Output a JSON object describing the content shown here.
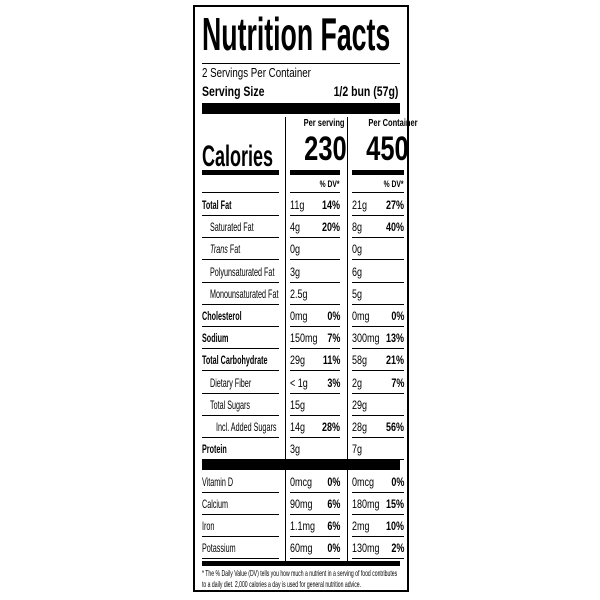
{
  "title": "Nutrition Facts",
  "servings_per_container": "2 Servings Per Container",
  "serving_size": {
    "label": "Serving Size",
    "value": "1/2 bun (57g)"
  },
  "calories": {
    "label": "Calories",
    "per_serving_label": "Per serving",
    "per_serving": "230",
    "per_container_label": "Per Container",
    "per_container": "450"
  },
  "dv_header": "% DV*",
  "nutrients": [
    {
      "label": "Total Fat",
      "bold": true,
      "indent": 0,
      "serving": "11g",
      "serving_dv": "14%",
      "container": "21g",
      "container_dv": "27%"
    },
    {
      "label": "Saturated Fat",
      "bold": false,
      "indent": 1,
      "serving": "4g",
      "serving_dv": "20%",
      "container": "8g",
      "container_dv": "40%"
    },
    {
      "label": "Trans Fat",
      "italic_prefix": "Trans",
      "bold": false,
      "indent": 1,
      "serving": "0g",
      "serving_dv": "",
      "container": "0g",
      "container_dv": ""
    },
    {
      "label": "Polyunsaturated Fat",
      "bold": false,
      "indent": 1,
      "serving": "3g",
      "serving_dv": "",
      "container": "6g",
      "container_dv": ""
    },
    {
      "label": "Monounsaturated Fat",
      "bold": false,
      "indent": 1,
      "serving": "2.5g",
      "serving_dv": "",
      "container": "5g",
      "container_dv": ""
    },
    {
      "label": "Cholesterol",
      "bold": true,
      "indent": 0,
      "serving": "0mg",
      "serving_dv": "0%",
      "container": "0mg",
      "container_dv": "0%"
    },
    {
      "label": "Sodium",
      "bold": true,
      "indent": 0,
      "serving": "150mg",
      "serving_dv": "7%",
      "container": "300mg",
      "container_dv": "13%"
    },
    {
      "label": "Total Carbohydrate",
      "bold": true,
      "indent": 0,
      "serving": "29g",
      "serving_dv": "11%",
      "container": "58g",
      "container_dv": "21%"
    },
    {
      "label": "Dietary Fiber",
      "bold": false,
      "indent": 1,
      "serving": "< 1g",
      "serving_dv": "3%",
      "container": "2g",
      "container_dv": "7%"
    },
    {
      "label": "Total Sugars",
      "bold": false,
      "indent": 1,
      "serving": "15g",
      "serving_dv": "",
      "container": "29g",
      "container_dv": ""
    },
    {
      "label": "Incl. Added Sugars",
      "bold": false,
      "indent": 2,
      "serving": "14g",
      "serving_dv": "28%",
      "container": "28g",
      "container_dv": "56%"
    },
    {
      "label": "Protein",
      "bold": true,
      "indent": 0,
      "serving": "3g",
      "serving_dv": "",
      "container": "7g",
      "container_dv": ""
    }
  ],
  "vitamins": [
    {
      "label": "Vitamin D",
      "serving": "0mcg",
      "serving_dv": "0%",
      "container": "0mcg",
      "container_dv": "0%"
    },
    {
      "label": "Calcium",
      "serving": "90mg",
      "serving_dv": "6%",
      "container": "180mg",
      "container_dv": "15%"
    },
    {
      "label": "Iron",
      "serving": "1.1mg",
      "serving_dv": "6%",
      "container": "2mg",
      "container_dv": "10%"
    },
    {
      "label": "Potassium",
      "serving": "60mg",
      "serving_dv": "0%",
      "container": "130mg",
      "container_dv": "2%"
    }
  ],
  "footnote": "* The % Daily Value (DV) tells you how much a nutrient in a serving of food contributes to a daily diet. 2,000 calories a day is used for general nutrition advice."
}
